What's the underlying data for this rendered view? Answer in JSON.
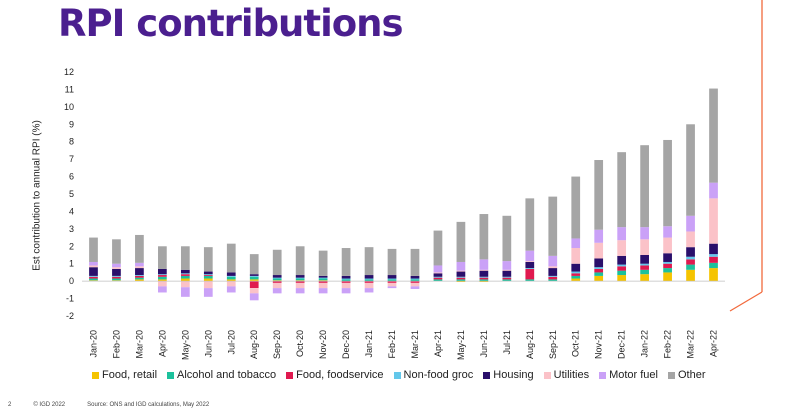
{
  "title": "RPI contributions",
  "footer": {
    "page": "2",
    "brand": "© IGD 2022",
    "source": "Source: ONS and IGD calculations, May 2022"
  },
  "chart_data": {
    "type": "bar",
    "stacked": true,
    "ylabel": "Est contribution to annual RPI (%)",
    "xlabel": "",
    "ylim": [
      -2,
      12
    ],
    "yticks": [
      -2,
      -1,
      0,
      1,
      2,
      3,
      4,
      5,
      6,
      7,
      8,
      9,
      10,
      11,
      12
    ],
    "legend_position": "bottom",
    "grid": false,
    "categories": [
      "Jan-20",
      "Feb-20",
      "Mar-20",
      "Apr-20",
      "May-20",
      "Jun-20",
      "Jul-20",
      "Aug-20",
      "Sep-20",
      "Oct-20",
      "Nov-20",
      "Dec-20",
      "Jan-21",
      "Feb-21",
      "Mar-21",
      "Apr-21",
      "May-21",
      "Jun-21",
      "Jul-21",
      "Aug-21",
      "Sep-21",
      "Oct-21",
      "Nov-21",
      "Dec-21",
      "Jan-22",
      "Feb-22",
      "Mar-22",
      "Apr-22"
    ],
    "series": [
      {
        "name": "Food, retail",
        "color": "#f5c400",
        "values": [
          0.05,
          0.05,
          0.1,
          0.1,
          0.15,
          0.15,
          0.1,
          0.1,
          0.05,
          0.05,
          0.05,
          0.0,
          0.0,
          0.0,
          0.0,
          0.0,
          -0.05,
          -0.05,
          0.0,
          0.0,
          0.0,
          0.15,
          0.3,
          0.35,
          0.4,
          0.5,
          0.65,
          0.75
        ]
      },
      {
        "name": "Alcohol and tobacco",
        "color": "#1cc19c",
        "values": [
          0.1,
          0.1,
          0.1,
          0.15,
          0.15,
          0.15,
          0.15,
          0.15,
          0.1,
          0.1,
          0.1,
          0.1,
          0.1,
          0.1,
          0.1,
          0.1,
          0.1,
          0.1,
          0.1,
          0.1,
          0.1,
          0.15,
          0.2,
          0.25,
          0.25,
          0.25,
          0.3,
          0.3
        ]
      },
      {
        "name": "Food, foodservice",
        "color": "#e0194f",
        "values": [
          0.1,
          0.1,
          0.1,
          0.1,
          0.1,
          0.05,
          0.0,
          -0.4,
          -0.1,
          -0.1,
          -0.1,
          -0.1,
          -0.1,
          -0.1,
          -0.1,
          0.1,
          0.1,
          0.1,
          0.1,
          0.6,
          0.15,
          0.15,
          0.2,
          0.25,
          0.25,
          0.25,
          0.3,
          0.35
        ]
      },
      {
        "name": "Non-food groc",
        "color": "#63c7ea",
        "values": [
          0.05,
          0.05,
          0.05,
          0.05,
          0.05,
          0.05,
          0.05,
          0.05,
          0.05,
          0.05,
          0.05,
          0.05,
          0.05,
          0.05,
          0.05,
          0.05,
          0.05,
          0.05,
          0.05,
          0.05,
          0.05,
          0.1,
          0.1,
          0.1,
          0.1,
          0.1,
          0.15,
          0.15
        ]
      },
      {
        "name": "Housing",
        "color": "#2a0f6b",
        "values": [
          0.5,
          0.4,
          0.4,
          0.3,
          0.2,
          0.15,
          0.2,
          0.1,
          0.15,
          0.15,
          0.1,
          0.15,
          0.2,
          0.2,
          0.15,
          0.2,
          0.3,
          0.35,
          0.35,
          0.35,
          0.45,
          0.45,
          0.5,
          0.5,
          0.5,
          0.5,
          0.55,
          0.6
        ]
      },
      {
        "name": "Utilities",
        "color": "#fbc2c8",
        "values": [
          0.1,
          0.1,
          0.1,
          -0.3,
          -0.35,
          -0.4,
          -0.3,
          -0.3,
          -0.3,
          -0.3,
          -0.3,
          -0.3,
          -0.3,
          -0.2,
          -0.2,
          0.05,
          0.05,
          0.05,
          0.05,
          0.05,
          0.1,
          0.9,
          0.9,
          0.9,
          0.9,
          0.9,
          0.9,
          2.6
        ]
      },
      {
        "name": "Motor fuel",
        "color": "#caa1f7",
        "values": [
          0.2,
          0.2,
          0.2,
          -0.35,
          -0.55,
          -0.5,
          -0.35,
          -0.4,
          -0.3,
          -0.3,
          -0.3,
          -0.3,
          -0.25,
          -0.1,
          -0.15,
          0.4,
          0.5,
          0.6,
          0.5,
          0.6,
          0.6,
          0.55,
          0.75,
          0.75,
          0.7,
          0.65,
          0.9,
          0.9
        ]
      },
      {
        "name": "Other",
        "color": "#a5a5a5",
        "values": [
          1.4,
          1.4,
          1.6,
          1.3,
          1.35,
          1.4,
          1.65,
          1.15,
          1.45,
          1.65,
          1.45,
          1.6,
          1.6,
          1.5,
          1.55,
          2.0,
          2.3,
          2.6,
          2.6,
          3.0,
          3.4,
          3.55,
          4.0,
          4.3,
          4.7,
          4.95,
          5.25,
          5.4
        ]
      }
    ]
  }
}
